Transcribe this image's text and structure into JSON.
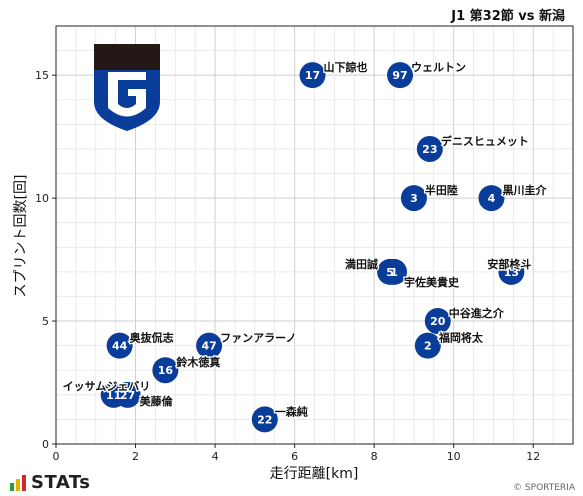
{
  "chart_data": {
    "type": "scatter",
    "title": "J1 第32節 vs 新潟",
    "xlabel": "走行距離[km]",
    "ylabel": "スプリント回数[回]",
    "xlim": [
      0,
      13
    ],
    "ylim": [
      0,
      17
    ],
    "x_ticks": [
      0,
      2,
      4,
      6,
      8,
      10,
      12
    ],
    "y_ticks": [
      0,
      5,
      10,
      15
    ],
    "grid": true,
    "legend": "none",
    "marker_color": "#0a3d9a",
    "points": [
      {
        "number": "17",
        "name": "山下諒也",
        "x": 6.45,
        "y": 15
      },
      {
        "number": "97",
        "name": "ウェルトン",
        "x": 8.65,
        "y": 15
      },
      {
        "number": "23",
        "name": "デニスヒュメット",
        "x": 9.4,
        "y": 12
      },
      {
        "number": "3",
        "name": "半田陸",
        "x": 9.0,
        "y": 10
      },
      {
        "number": "4",
        "name": "黒川圭介",
        "x": 10.95,
        "y": 10
      },
      {
        "number": "5",
        "name": "満田誠",
        "x": 8.4,
        "y": 7
      },
      {
        "number": "1",
        "name": "宇佐美貴史",
        "x": 8.5,
        "y": 7
      },
      {
        "number": "13",
        "name": "安部柊斗",
        "x": 11.45,
        "y": 7
      },
      {
        "number": "20",
        "name": "中谷進之介",
        "x": 9.6,
        "y": 5
      },
      {
        "number": "2",
        "name": "福岡将太",
        "x": 9.35,
        "y": 4
      },
      {
        "number": "44",
        "name": "奥抜侃志",
        "x": 1.6,
        "y": 4
      },
      {
        "number": "47",
        "name": "ファンアラーノ",
        "x": 3.85,
        "y": 4
      },
      {
        "number": "16",
        "name": "鈴木徳真",
        "x": 2.75,
        "y": 3
      },
      {
        "number": "11",
        "name": "イッサムジェバリ",
        "x": 1.45,
        "y": 2
      },
      {
        "number": "27",
        "name": "美藤倫",
        "x": 1.8,
        "y": 2
      },
      {
        "number": "22",
        "name": "一森純",
        "x": 5.25,
        "y": 1
      }
    ]
  },
  "footer": {
    "brand": "STATs",
    "copyright": "© SPORTERIA"
  },
  "logo": {
    "name": "club-crest",
    "colors": {
      "top": "#231815",
      "shield": "#0a3d9a"
    }
  }
}
